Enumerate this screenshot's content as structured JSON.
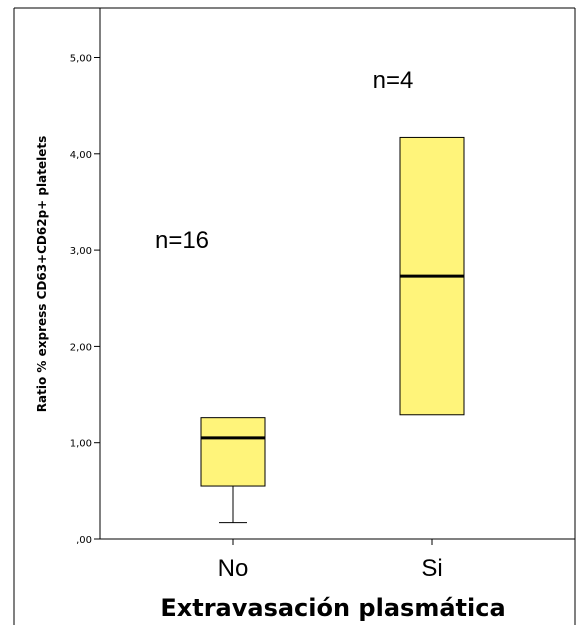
{
  "chart_data": {
    "type": "box",
    "ylabel": "Ratio % express CD63+CD62p+ platelets",
    "xlabel": "Extravasación plasmática",
    "ylim": [
      0,
      5.6
    ],
    "yticks": [
      {
        "value": 0,
        "label": ",00"
      },
      {
        "value": 1,
        "label": "1,00"
      },
      {
        "value": 2,
        "label": "2,00"
      },
      {
        "value": 3,
        "label": "3,00"
      },
      {
        "value": 4,
        "label": "4,00"
      },
      {
        "value": 5,
        "label": "5,00"
      }
    ],
    "grid": false,
    "box_color": "#FFF47A",
    "categories": [
      "No",
      "Si"
    ],
    "boxes": [
      {
        "category": "No",
        "n_label": "n=16",
        "min": 0.17,
        "q1": 0.55,
        "median": 1.05,
        "q3": 1.26,
        "max": 1.26
      },
      {
        "category": "Si",
        "n_label": "n=4",
        "min": 1.29,
        "q1": 1.29,
        "median": 2.73,
        "q3": 4.17,
        "max": 4.17
      }
    ]
  }
}
